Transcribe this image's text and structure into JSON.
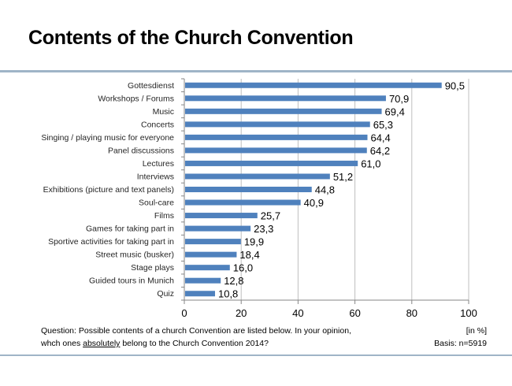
{
  "title": "Contents of the Church Convention",
  "chart_data": {
    "type": "bar",
    "orientation": "horizontal",
    "title": "Contents of the Church Convention",
    "categories": [
      "Gottesdienst",
      "Workshops / Forums",
      "Music",
      "Concerts",
      "Singing / playing music for everyone",
      "Panel discussions",
      "Lectures",
      "Interviews",
      "Exhibitions (picture and text panels)",
      "Soul-care",
      "Films",
      "Games for taking part in",
      "Sportive activities for taking part in",
      "Street music (busker)",
      "Stage plays",
      "Guided tours in Munich",
      "Quiz"
    ],
    "values": [
      90.5,
      70.9,
      69.4,
      65.3,
      64.4,
      64.2,
      61.0,
      51.2,
      44.8,
      40.9,
      25.7,
      23.3,
      19.9,
      18.4,
      16.0,
      12.8,
      10.8
    ],
    "value_labels": [
      "90,5",
      "70,9",
      "69,4",
      "65,3",
      "64,4",
      "64,2",
      "61,0",
      "51,2",
      "44,8",
      "40,9",
      "25,7",
      "23,3",
      "19,9",
      "18,4",
      "16,0",
      "12,8",
      "10,8"
    ],
    "xlim": [
      0,
      100
    ],
    "xticks": [
      "0",
      "20",
      "40",
      "60",
      "80",
      "100"
    ],
    "xtick_values": [
      0,
      20,
      40,
      60,
      80,
      100
    ],
    "grid": true,
    "bar_color": "#4f81bd",
    "xlabel": "",
    "ylabel": ""
  },
  "footer": {
    "question_prefix": "Question: Possible contents of a church Convention are listed below. In your opinion,",
    "question_line2_a": "whch ones ",
    "question_line2_underlined": "absolutely",
    "question_line2_b": " belong to the Church Convention 2014?",
    "unit": "[in %]",
    "basis": "Basis: n=5919"
  },
  "colors": {
    "rule": "#9fb4c7",
    "grid": "#bfbfbf",
    "bar": "#4f81bd"
  }
}
